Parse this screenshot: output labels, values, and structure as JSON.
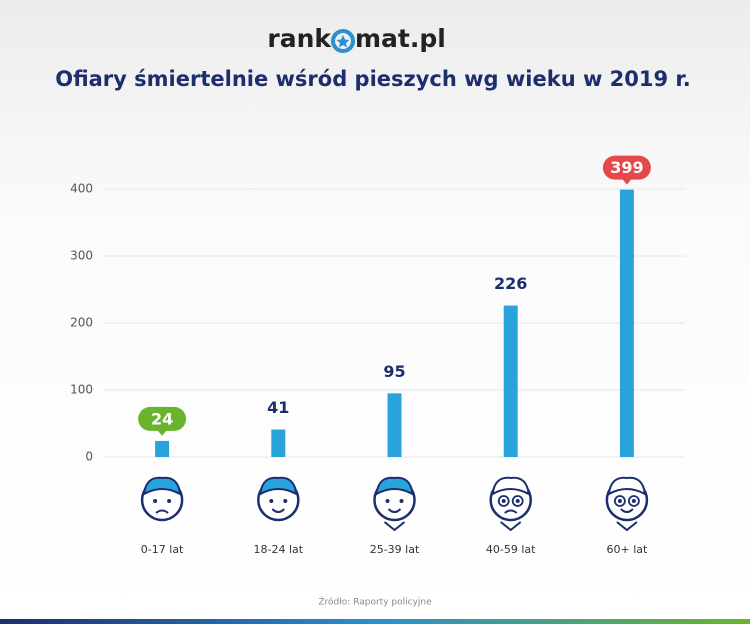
{
  "logo": {
    "left": "rank",
    "right": "mat.pl"
  },
  "chart_data": {
    "type": "bar",
    "title": "Ofiary śmiertelnie wśród pieszych wg wieku w 2019 r.",
    "categories": [
      "0-17 lat",
      "18-24 lat",
      "25-39 lat",
      "40-59 lat",
      "60+ lat"
    ],
    "values": [
      24,
      41,
      95,
      226,
      399
    ],
    "color": "#29a3dc",
    "badge_colors": [
      "#6ab42d",
      null,
      null,
      null,
      "#e5484b"
    ],
    "ylim": [
      0,
      400
    ],
    "yticks": [
      0,
      100,
      200,
      300,
      400
    ],
    "grid": true,
    "source": "Źródło: Raporty policyjne"
  }
}
